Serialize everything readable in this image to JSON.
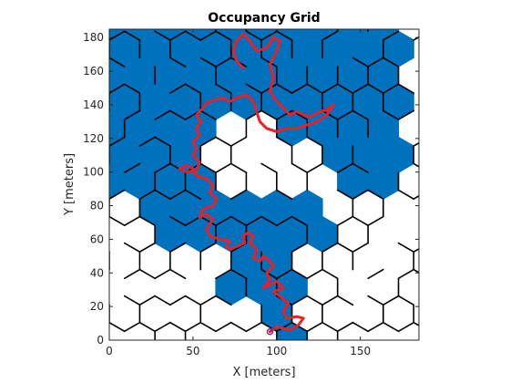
{
  "chart_data": {
    "type": "heatmap",
    "title": "Occupancy Grid",
    "xlabel": "X [meters]",
    "ylabel": "Y [meters]",
    "xlim": [
      0,
      185
    ],
    "ylim": [
      0,
      185
    ],
    "x_ticks": [
      "0",
      "50",
      "100",
      "150"
    ],
    "y_ticks": [
      "0",
      "20",
      "40",
      "60",
      "80",
      "100",
      "120",
      "140",
      "160",
      "180"
    ],
    "grid": false,
    "colors": {
      "explored": "#0072BD",
      "path": "#E8202A",
      "walls": "#000000",
      "start": "#7E2F8E"
    },
    "path_points": [
      [
        96,
        5
      ],
      [
        100,
        8
      ],
      [
        104,
        7
      ],
      [
        108,
        6
      ],
      [
        113,
        9
      ],
      [
        116,
        13
      ],
      [
        112,
        14
      ],
      [
        106,
        13
      ],
      [
        104,
        17
      ],
      [
        107,
        22
      ],
      [
        102,
        26
      ],
      [
        98,
        29
      ],
      [
        104,
        31
      ],
      [
        100,
        35
      ],
      [
        96,
        33
      ],
      [
        92,
        31
      ],
      [
        96,
        36
      ],
      [
        94,
        40
      ],
      [
        98,
        44
      ],
      [
        96,
        47
      ],
      [
        92,
        50
      ],
      [
        90,
        47
      ],
      [
        86,
        49
      ],
      [
        88,
        54
      ],
      [
        84,
        58
      ],
      [
        86,
        62
      ],
      [
        83,
        64
      ],
      [
        80,
        62
      ],
      [
        81,
        58
      ],
      [
        77,
        56
      ],
      [
        72,
        54
      ],
      [
        70,
        56
      ],
      [
        72,
        59
      ],
      [
        66,
        60
      ],
      [
        60,
        62
      ],
      [
        58,
        66
      ],
      [
        62,
        72
      ],
      [
        58,
        75
      ],
      [
        54,
        73
      ],
      [
        56,
        78
      ],
      [
        62,
        80
      ],
      [
        64,
        84
      ],
      [
        60,
        88
      ],
      [
        62,
        92
      ],
      [
        58,
        96
      ],
      [
        52,
        98
      ],
      [
        50,
        102
      ],
      [
        46,
        104
      ],
      [
        42,
        102
      ],
      [
        46,
        100
      ],
      [
        52,
        101
      ],
      [
        54,
        106
      ],
      [
        50,
        110
      ],
      [
        52,
        114
      ],
      [
        50,
        118
      ],
      [
        54,
        122
      ],
      [
        52,
        126
      ],
      [
        55,
        130
      ],
      [
        52,
        134
      ],
      [
        56,
        138
      ],
      [
        58,
        141
      ],
      [
        63,
        143
      ],
      [
        68,
        144
      ],
      [
        72,
        142
      ],
      [
        76,
        144
      ],
      [
        82,
        146
      ],
      [
        86,
        142
      ],
      [
        88,
        136
      ],
      [
        90,
        130
      ],
      [
        94,
        126
      ],
      [
        100,
        124
      ],
      [
        106,
        126
      ],
      [
        112,
        126
      ],
      [
        118,
        128
      ],
      [
        124,
        130
      ],
      [
        130,
        134
      ],
      [
        134,
        140
      ],
      [
        130,
        137
      ],
      [
        126,
        136
      ],
      [
        120,
        133
      ],
      [
        116,
        134
      ],
      [
        112,
        136
      ],
      [
        108,
        134
      ],
      [
        104,
        138
      ],
      [
        100,
        142
      ],
      [
        96,
        148
      ],
      [
        98,
        156
      ],
      [
        96,
        164
      ],
      [
        100,
        172
      ],
      [
        102,
        178
      ],
      [
        98,
        180
      ],
      [
        94,
        174
      ],
      [
        88,
        172
      ],
      [
        84,
        178
      ],
      [
        80,
        182
      ],
      [
        76,
        178
      ],
      [
        74,
        172
      ],
      [
        76,
        166
      ],
      [
        80,
        162
      ]
    ]
  }
}
